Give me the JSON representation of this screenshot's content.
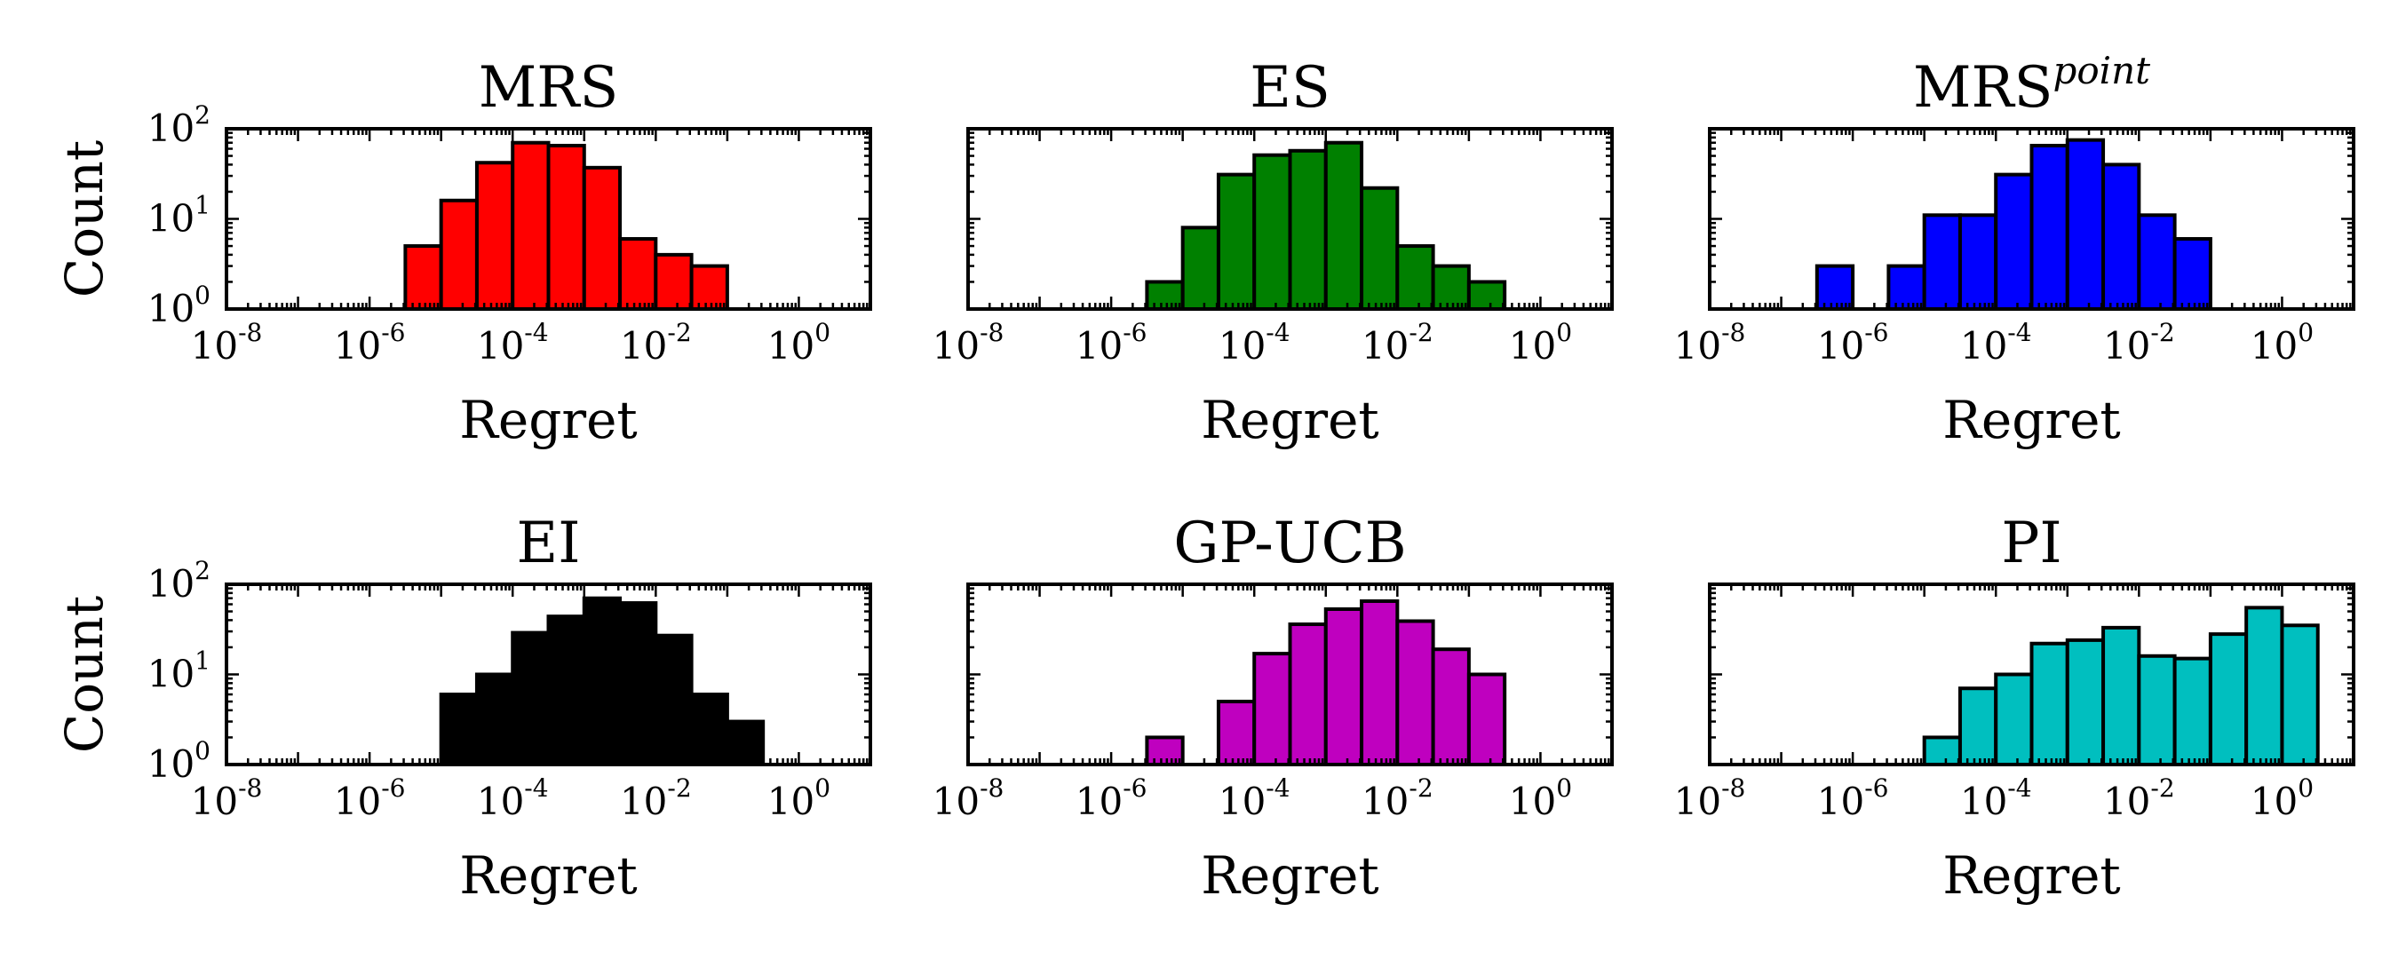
{
  "figure": {
    "y_label": "Count"
  },
  "chart_data": [
    {
      "type": "bar",
      "title": "MRS",
      "title_sup": "",
      "xlabel": "Regret",
      "ylabel": "Count",
      "color": "#ff0000",
      "x_scale": "log",
      "y_scale": "log",
      "xlim_exp": [
        -8,
        1
      ],
      "ylim_exp": [
        0,
        2
      ],
      "xticks": [
        "-8",
        "-6",
        "-4",
        "-2",
        "0"
      ],
      "yticks": [
        "0",
        "1",
        "2"
      ],
      "bin_start_exp": -5.5,
      "bin_width_exp": 0.5,
      "values": [
        5,
        16,
        42,
        70,
        65,
        37,
        6,
        4,
        3
      ]
    },
    {
      "type": "bar",
      "title": "ES",
      "title_sup": "",
      "xlabel": "Regret",
      "ylabel": "",
      "color": "#008000",
      "x_scale": "log",
      "y_scale": "log",
      "xlim_exp": [
        -8,
        1
      ],
      "ylim_exp": [
        0,
        2
      ],
      "xticks": [
        "-8",
        "-6",
        "-4",
        "-2",
        "0"
      ],
      "yticks": [],
      "bin_start_exp": -5.5,
      "bin_width_exp": 0.5,
      "values": [
        2,
        8,
        31,
        51,
        57,
        70,
        22,
        5,
        3,
        2
      ]
    },
    {
      "type": "bar",
      "title": "MRS",
      "title_sup": "point",
      "xlabel": "Regret",
      "ylabel": "",
      "color": "#0000ff",
      "x_scale": "log",
      "y_scale": "log",
      "xlim_exp": [
        -8,
        1
      ],
      "ylim_exp": [
        0,
        2
      ],
      "xticks": [
        "-8",
        "-6",
        "-4",
        "-2",
        "0"
      ],
      "yticks": [],
      "bin_start_exp": -6.5,
      "bin_width_exp": 0.5,
      "values": [
        3,
        0,
        3,
        11,
        11,
        31,
        65,
        75,
        40,
        11,
        6
      ]
    },
    {
      "type": "bar",
      "title": "EI",
      "title_sup": "",
      "xlabel": "Regret",
      "ylabel": "Count",
      "color": "#000000",
      "x_scale": "log",
      "y_scale": "log",
      "xlim_exp": [
        -8,
        1
      ],
      "ylim_exp": [
        0,
        2
      ],
      "xticks": [
        "-8",
        "-6",
        "-4",
        "-2",
        "0"
      ],
      "yticks": [
        "0",
        "1",
        "2"
      ],
      "bin_start_exp": -5.0,
      "bin_width_exp": 0.5,
      "values": [
        6,
        10,
        29,
        44,
        70,
        62,
        27,
        6,
        3
      ]
    },
    {
      "type": "bar",
      "title": "GP-UCB",
      "title_sup": "",
      "xlabel": "Regret",
      "ylabel": "",
      "color": "#bf00bf",
      "x_scale": "log",
      "y_scale": "log",
      "xlim_exp": [
        -8,
        1
      ],
      "ylim_exp": [
        0,
        2
      ],
      "xticks": [
        "-8",
        "-6",
        "-4",
        "-2",
        "0"
      ],
      "yticks": [],
      "bin_start_exp": -5.5,
      "bin_width_exp": 0.5,
      "values": [
        2,
        0,
        5,
        17,
        36,
        53,
        65,
        39,
        19,
        10
      ]
    },
    {
      "type": "bar",
      "title": "PI",
      "title_sup": "",
      "xlabel": "Regret",
      "ylabel": "",
      "color": "#00bfbf",
      "x_scale": "log",
      "y_scale": "log",
      "xlim_exp": [
        -8,
        1
      ],
      "ylim_exp": [
        0,
        2
      ],
      "xticks": [
        "-8",
        "-6",
        "-4",
        "-2",
        "0"
      ],
      "yticks": [],
      "bin_start_exp": -5.0,
      "bin_width_exp": 0.5,
      "values": [
        2,
        7,
        10,
        22,
        24,
        33,
        16,
        15,
        28,
        55,
        35
      ]
    }
  ]
}
